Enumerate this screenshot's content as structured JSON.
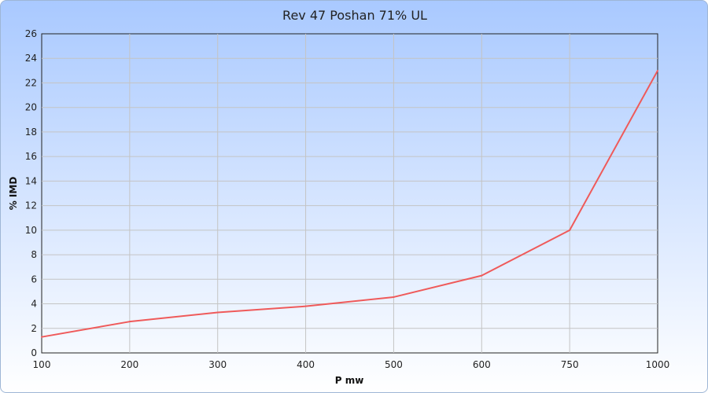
{
  "chart_data": {
    "type": "line",
    "title": "Rev 47 Poshan 71% UL",
    "xlabel": "P mw",
    "ylabel": "% IMD",
    "categories": [
      "100",
      "200",
      "300",
      "400",
      "500",
      "600",
      "750",
      "1000"
    ],
    "series": [
      {
        "values": [
          1.3,
          2.55,
          3.3,
          3.8,
          4.55,
          6.3,
          10.0,
          23.0
        ],
        "color": "#ef5a5a"
      }
    ],
    "ylim": [
      0,
      26
    ],
    "yticks": [
      0,
      2,
      4,
      6,
      8,
      10,
      12,
      14,
      16,
      18,
      20,
      22,
      24,
      26
    ],
    "grid": true,
    "legend": "none"
  }
}
